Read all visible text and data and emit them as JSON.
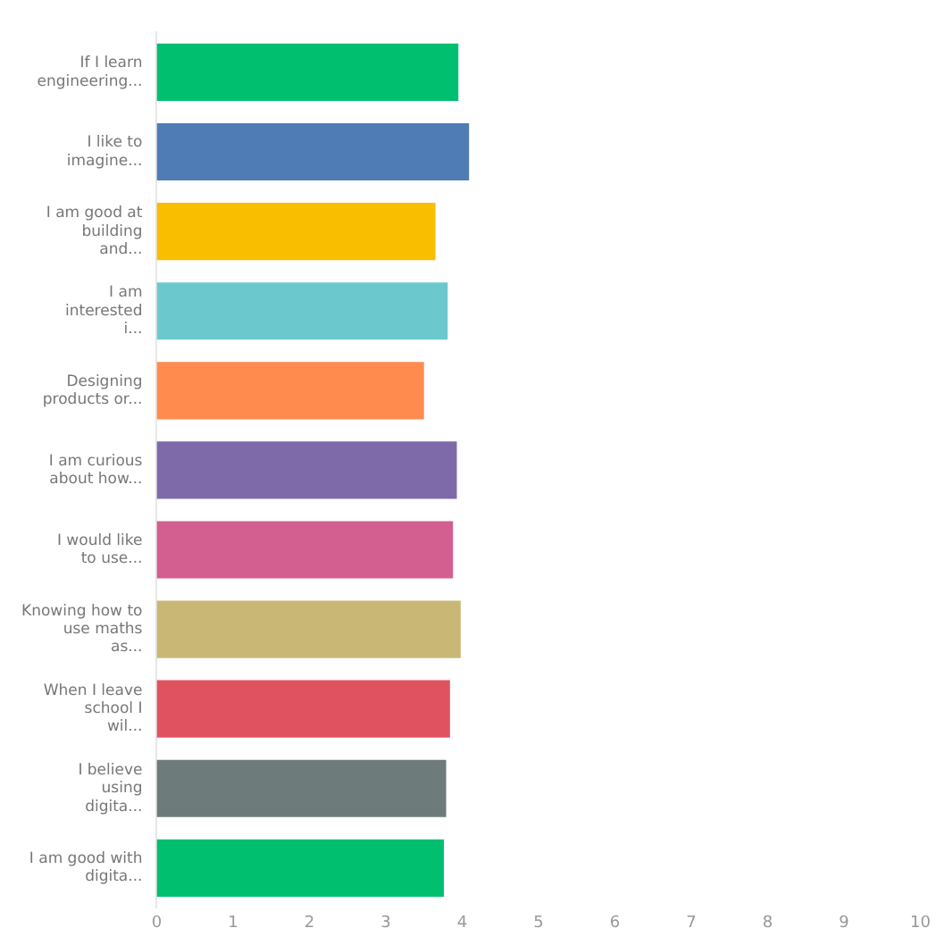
{
  "chart_data": {
    "type": "bar",
    "orientation": "horizontal",
    "categories": [
      "If I learn engineering...",
      "I like to imagine...",
      "I am good at building and...",
      "I am interested i...",
      "Designing products or...",
      "I am curious about how...",
      "I would like to use...",
      "Knowing how to use maths as...",
      "When I leave school I wil...",
      "I believe using digita...",
      "I am good with digita..."
    ],
    "values": [
      3.95,
      4.09,
      3.65,
      3.81,
      3.5,
      3.93,
      3.88,
      3.98,
      3.84,
      3.79,
      3.76
    ],
    "colors": [
      "#00bf6f",
      "#507cb6",
      "#f9be00",
      "#6bc8cd",
      "#ff8b4f",
      "#7f6aa9",
      "#d25f90",
      "#c9b776",
      "#e05260",
      "#6d7b7a",
      "#00bf6f"
    ],
    "xlim": [
      0,
      10
    ],
    "xticks": [
      0,
      1,
      2,
      3,
      4,
      5,
      6,
      7,
      8,
      9,
      10
    ],
    "grid": false,
    "legend": false
  }
}
